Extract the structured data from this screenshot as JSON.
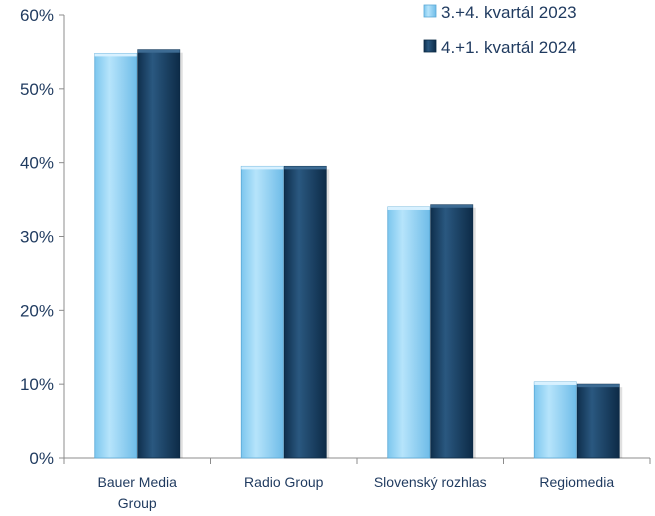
{
  "chart_data": {
    "type": "bar",
    "categories": [
      [
        "Bauer Media",
        "Group"
      ],
      [
        "Radio Group"
      ],
      [
        "Slovenský rozhlas"
      ],
      [
        "Regiomedia"
      ]
    ],
    "series": [
      {
        "name": "3.+4. kvartál 2023",
        "color": "#8fd2f5",
        "values": [
          54.8,
          39.5,
          34.0,
          10.3
        ]
      },
      {
        "name": "4.+1. kvartál 2024",
        "color": "#173f63",
        "values": [
          55.3,
          39.5,
          34.3,
          10.0
        ]
      }
    ],
    "ylim": [
      0,
      60
    ],
    "yticks": [
      "0%",
      "10%",
      "20%",
      "30%",
      "40%",
      "50%",
      "60%"
    ],
    "grid": false,
    "legend": "top-right"
  }
}
